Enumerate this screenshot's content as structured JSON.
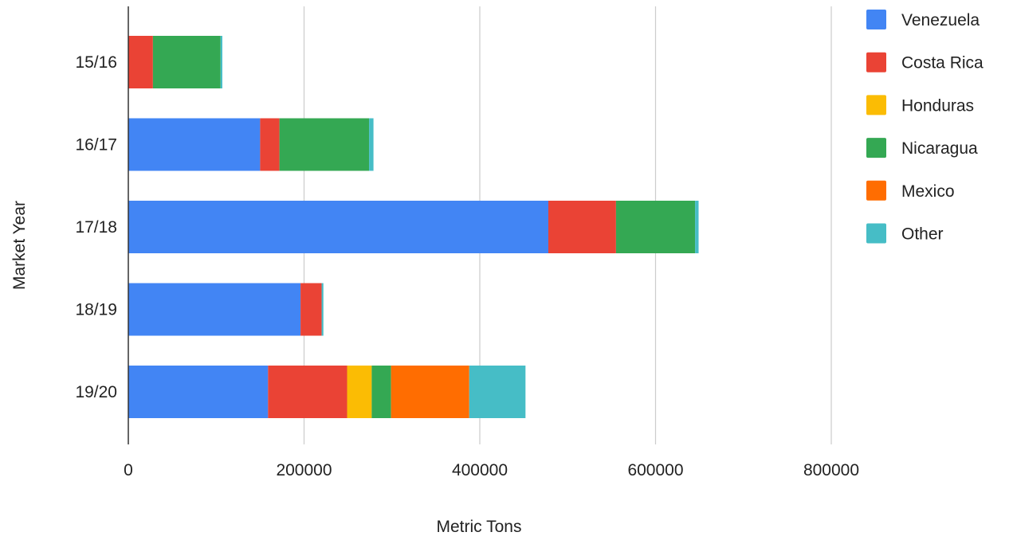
{
  "chart_data": {
    "type": "bar",
    "orientation": "horizontal",
    "stacked": true,
    "title": "",
    "xlabel": "Metric Tons",
    "ylabel": "Market Year",
    "xlim": [
      0,
      1000000
    ],
    "x_ticks": [
      "0",
      "200000",
      "400000",
      "600000",
      "800000"
    ],
    "grid": true,
    "legend_position": "right",
    "categories": [
      "15/16",
      "16/17",
      "17/18",
      "18/19",
      "19/20"
    ],
    "series": [
      {
        "name": "Venezuela",
        "color": "#4285f4",
        "values": [
          0,
          150000,
          478000,
          196000,
          159000
        ]
      },
      {
        "name": "Costa Rica",
        "color": "#ea4335",
        "values": [
          28000,
          22000,
          77000,
          24000,
          90000
        ]
      },
      {
        "name": "Honduras",
        "color": "#fbbc04",
        "values": [
          0,
          0,
          0,
          0,
          28000
        ]
      },
      {
        "name": "Nicaragua",
        "color": "#34a853",
        "values": [
          77000,
          102000,
          90000,
          0,
          22000
        ]
      },
      {
        "name": "Mexico",
        "color": "#ff6d01",
        "values": [
          0,
          0,
          0,
          0,
          89000
        ]
      },
      {
        "name": "Other",
        "color": "#46bdc6",
        "values": [
          2000,
          5000,
          4000,
          2000,
          64000
        ]
      }
    ]
  }
}
